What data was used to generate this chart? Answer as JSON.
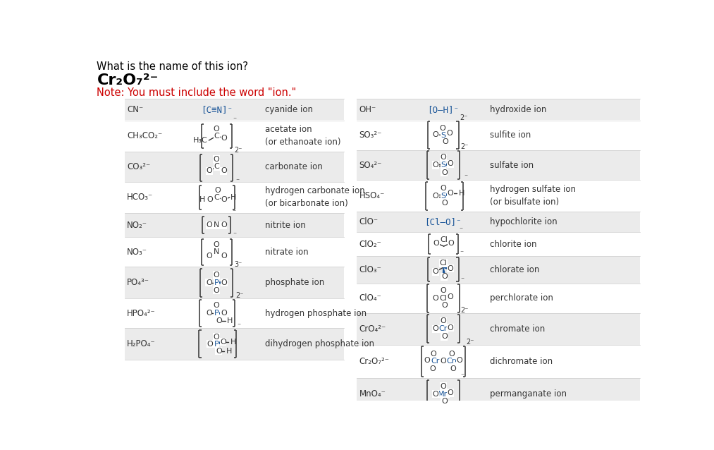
{
  "bg_color": "#ffffff",
  "question": "What is the name of this ion?",
  "formula_display": "Cr₂O₇²⁻",
  "note": "Note: You must include the word \"ion.\"",
  "note_color": "#cc0000",
  "alt_color": "#ebebeb",
  "white_color": "#ffffff",
  "text_dark": "#222222",
  "blue": "#1a5598",
  "black": "#333333",
  "left_rows": [
    {
      "f": "CN⁻",
      "n": "cyanide ion",
      "sh": true,
      "rh": 40
    },
    {
      "f": "CH₃CO₂⁻",
      "n": "acetate ion\n(or ethanoate ion)",
      "sh": false,
      "rh": 58
    },
    {
      "f": "CO₃²⁻",
      "n": "carbonate ion",
      "sh": true,
      "rh": 55
    },
    {
      "f": "HCO₃⁻",
      "n": "hydrogen carbonate ion\n(or bicarbonate ion)",
      "sh": false,
      "rh": 58
    },
    {
      "f": "NO₂⁻",
      "n": "nitrite ion",
      "sh": true,
      "rh": 44
    },
    {
      "f": "NO₃⁻",
      "n": "nitrate ion",
      "sh": false,
      "rh": 55
    },
    {
      "f": "PO₄³⁻",
      "n": "phosphate ion",
      "sh": true,
      "rh": 58
    },
    {
      "f": "HPO₄²⁻",
      "n": "hydrogen phosphate ion",
      "sh": false,
      "rh": 55
    },
    {
      "f": "H₂PO₄⁻",
      "n": "dihydrogen phosphate ion",
      "sh": true,
      "rh": 58
    }
  ],
  "right_rows": [
    {
      "f": "OH⁻",
      "n": "hydroxide ion",
      "sh": true,
      "rh": 40
    },
    {
      "f": "SO₃²⁻",
      "n": "sulfite ion",
      "sh": false,
      "rh": 55
    },
    {
      "f": "SO₄²⁻",
      "n": "sulfate ion",
      "sh": true,
      "rh": 55
    },
    {
      "f": "HSO₄⁻",
      "n": "hydrogen sulfate ion\n(or bisulfate ion)",
      "sh": false,
      "rh": 58
    },
    {
      "f": "ClO⁻",
      "n": "hypochlorite ion",
      "sh": true,
      "rh": 38
    },
    {
      "f": "ClO₂⁻",
      "n": "chlorite ion",
      "sh": false,
      "rh": 44
    },
    {
      "f": "ClO₃⁻",
      "n": "chlorate ion",
      "sh": true,
      "rh": 50
    },
    {
      "f": "ClO₄⁻",
      "n": "perchlorate ion",
      "sh": false,
      "rh": 55
    },
    {
      "f": "CrO₄²⁻",
      "n": "chromate ion",
      "sh": true,
      "rh": 58
    },
    {
      "f": "Cr₂O₇²⁻",
      "n": "dichromate ion",
      "sh": false,
      "rh": 62
    },
    {
      "f": "MnO₄⁻",
      "n": "permanganate ion",
      "sh": true,
      "rh": 58
    }
  ]
}
